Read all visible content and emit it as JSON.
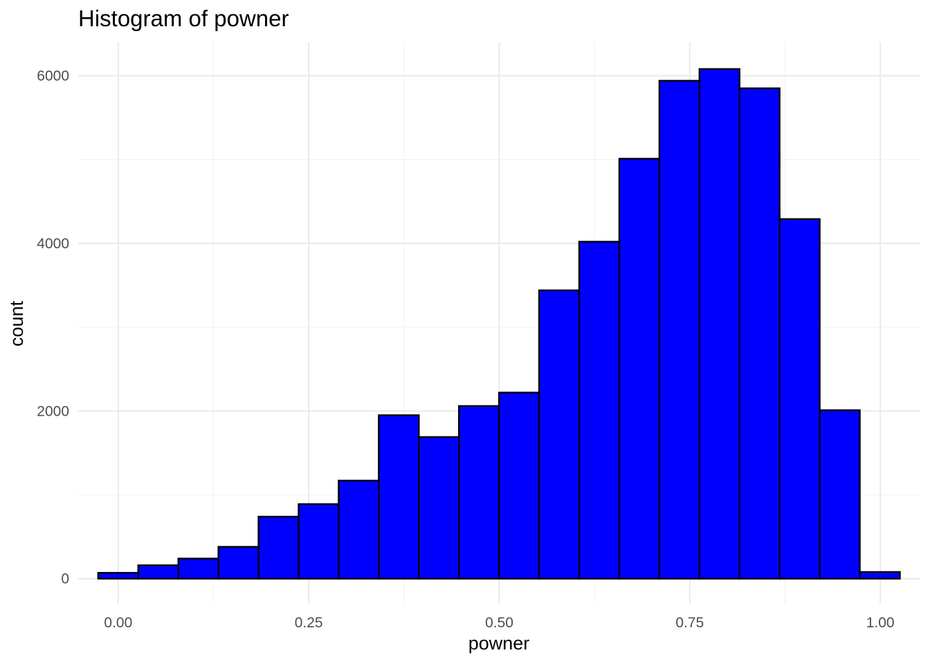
{
  "chart_data": {
    "type": "bar",
    "title": "Histogram of powner",
    "xlabel": "powner",
    "ylabel": "count",
    "xlim": [
      -0.0525,
      1.0525
    ],
    "ylim": [
      -300,
      6400
    ],
    "x_major_ticks": [
      0,
      0.25,
      0.5,
      0.75,
      1
    ],
    "x_tick_labels": [
      "0.00",
      "0.25",
      "0.50",
      "0.75",
      "1.00"
    ],
    "x_minor_ticks": [
      0.125,
      0.375,
      0.625,
      0.875
    ],
    "y_major_ticks": [
      0,
      2000,
      4000,
      6000
    ],
    "y_tick_labels": [
      "0",
      "2000",
      "4000",
      "6000"
    ],
    "y_minor_ticks": [
      1000,
      3000,
      5000
    ],
    "grid": true,
    "bin_width": 0.0526,
    "bin_start": -0.0263,
    "values": [
      70,
      160,
      240,
      380,
      740,
      890,
      1170,
      1950,
      1690,
      2060,
      2220,
      3440,
      4020,
      5010,
      5940,
      6080,
      5850,
      4290,
      2010,
      80
    ],
    "colors": {
      "fill": "#0000ff",
      "outline": "#000000"
    }
  }
}
